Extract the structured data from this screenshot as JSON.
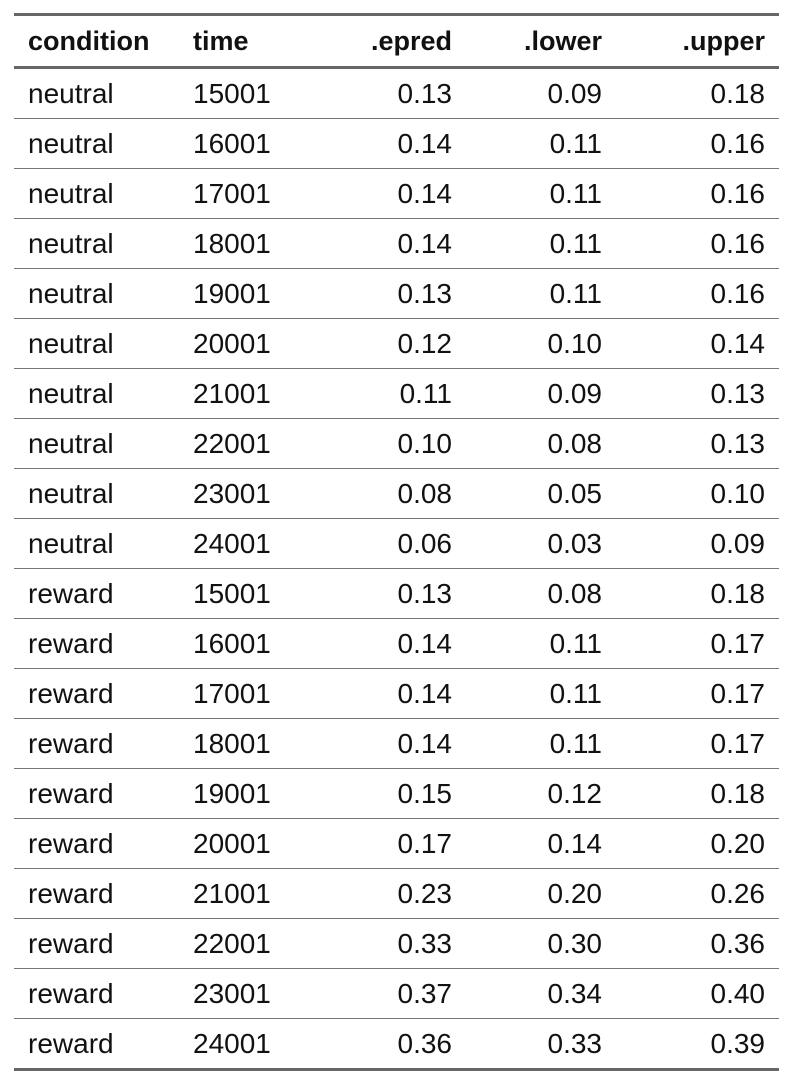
{
  "table": {
    "columns": [
      "condition",
      "time",
      ".epred",
      ".lower",
      ".upper"
    ],
    "rows": [
      [
        "neutral",
        "15001",
        "0.13",
        "0.09",
        "0.18"
      ],
      [
        "neutral",
        "16001",
        "0.14",
        "0.11",
        "0.16"
      ],
      [
        "neutral",
        "17001",
        "0.14",
        "0.11",
        "0.16"
      ],
      [
        "neutral",
        "18001",
        "0.14",
        "0.11",
        "0.16"
      ],
      [
        "neutral",
        "19001",
        "0.13",
        "0.11",
        "0.16"
      ],
      [
        "neutral",
        "20001",
        "0.12",
        "0.10",
        "0.14"
      ],
      [
        "neutral",
        "21001",
        "0.11",
        "0.09",
        "0.13"
      ],
      [
        "neutral",
        "22001",
        "0.10",
        "0.08",
        "0.13"
      ],
      [
        "neutral",
        "23001",
        "0.08",
        "0.05",
        "0.10"
      ],
      [
        "neutral",
        "24001",
        "0.06",
        "0.03",
        "0.09"
      ],
      [
        "reward",
        "15001",
        "0.13",
        "0.08",
        "0.18"
      ],
      [
        "reward",
        "16001",
        "0.14",
        "0.11",
        "0.17"
      ],
      [
        "reward",
        "17001",
        "0.14",
        "0.11",
        "0.17"
      ],
      [
        "reward",
        "18001",
        "0.14",
        "0.11",
        "0.17"
      ],
      [
        "reward",
        "19001",
        "0.15",
        "0.12",
        "0.18"
      ],
      [
        "reward",
        "20001",
        "0.17",
        "0.14",
        "0.20"
      ],
      [
        "reward",
        "21001",
        "0.23",
        "0.20",
        "0.26"
      ],
      [
        "reward",
        "22001",
        "0.33",
        "0.30",
        "0.36"
      ],
      [
        "reward",
        "23001",
        "0.37",
        "0.34",
        "0.40"
      ],
      [
        "reward",
        "24001",
        "0.36",
        "0.33",
        "0.39"
      ]
    ]
  },
  "colors": {
    "rule": "#666666",
    "row_line": "#777777",
    "text": "#111111",
    "background": "#ffffff"
  }
}
